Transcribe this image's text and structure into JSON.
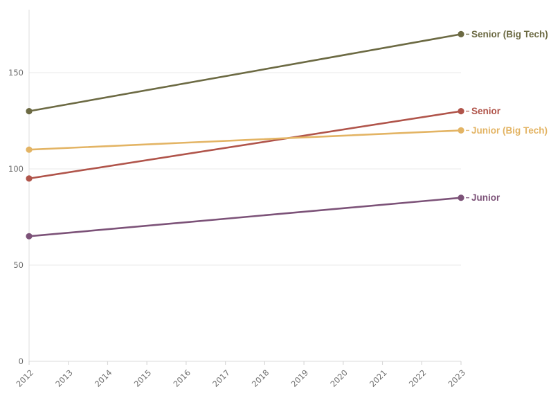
{
  "chart_data": {
    "type": "line",
    "title": "",
    "xlabel": "",
    "ylabel": "",
    "x": [
      2012,
      2023
    ],
    "x_axis_ticks": [
      2012,
      2013,
      2014,
      2015,
      2016,
      2017,
      2018,
      2019,
      2020,
      2021,
      2022,
      2023
    ],
    "y_ticks": [
      0,
      50,
      100,
      150
    ],
    "xlim": [
      2012,
      2023
    ],
    "ylim": [
      0,
      183
    ],
    "grid": "horizontal-only",
    "legend_position": "end-of-line-labels",
    "marker_style": "dots-at-endpoints",
    "series": [
      {
        "name": "Senior (Big Tech)",
        "color": "#6c6a43",
        "values": [
          130,
          170
        ]
      },
      {
        "name": "Senior",
        "color": "#b0544a",
        "values": [
          95,
          130
        ]
      },
      {
        "name": "Junior (Big Tech)",
        "color": "#e3b464",
        "values": [
          110,
          120
        ]
      },
      {
        "name": "Junior",
        "color": "#7c5278",
        "values": [
          65,
          85
        ]
      }
    ],
    "colors": {
      "gridline": "#ededed",
      "axis_line": "#e2e2e2",
      "tick_mark": "#d8d8d8",
      "tick_text": "#6f6f6f",
      "background": "#ffffff"
    }
  }
}
